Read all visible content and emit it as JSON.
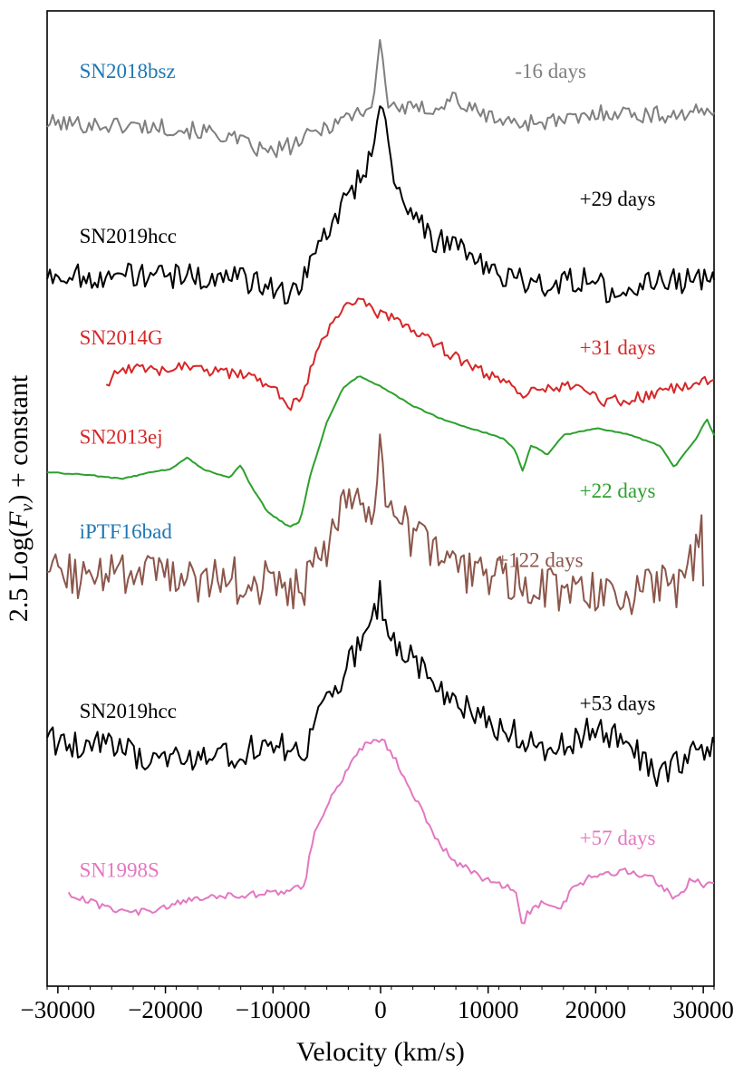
{
  "chart_data": {
    "type": "line",
    "xlabel": "Velocity (km/s)",
    "ylabel": "2.5 Log(F_ν) + constant",
    "ylabel_prefix": "2.5 Log(",
    "ylabel_var": "F",
    "ylabel_sub": "ν",
    "ylabel_suffix": ") + constant",
    "xlim": [
      -31000,
      31000
    ],
    "ylim": [
      0,
      100
    ],
    "yticks_shown": false,
    "xticks": [
      -30000,
      -20000,
      -10000,
      0,
      10000,
      20000,
      30000
    ],
    "xtick_labels": [
      "−30000",
      "−20000",
      "−10000",
      "0",
      "10000",
      "20000",
      "30000"
    ],
    "series": [
      {
        "name": "SN2018bsz",
        "epoch": "-16 days",
        "color": "#7f7f7f",
        "label_color": "#1f77b4",
        "epoch_color": "#7f7f7f",
        "offset": 88.7,
        "noise": 0.9,
        "label_at": {
          "x": -28000,
          "y": 93.1
        },
        "epoch_at": {
          "x": 12500,
          "y": 93.1
        },
        "points": [
          [
            -31000,
            88.5
          ],
          [
            -20000,
            88.1
          ],
          [
            -15000,
            87.4
          ],
          [
            -12000,
            86.1
          ],
          [
            -10500,
            85.4
          ],
          [
            -8000,
            86.3
          ],
          [
            -5000,
            88.2
          ],
          [
            -2000,
            89.7
          ],
          [
            -800,
            90.2
          ],
          [
            -300,
            94.2
          ],
          [
            -100,
            96.7
          ],
          [
            0,
            97.3
          ],
          [
            200,
            95.5
          ],
          [
            500,
            91.0
          ],
          [
            1000,
            90.3
          ],
          [
            3000,
            89.8
          ],
          [
            6000,
            90.3
          ],
          [
            6800,
            91.4
          ],
          [
            7800,
            90.1
          ],
          [
            12000,
            88.5
          ],
          [
            18000,
            88.8
          ],
          [
            21000,
            89.7
          ],
          [
            25000,
            89.3
          ],
          [
            31000,
            89.6
          ]
        ]
      },
      {
        "name": "SN2019hcc",
        "epoch": "+29 days",
        "color": "#000000",
        "label_color": "#000000",
        "epoch_color": "#000000",
        "offset": 73.5,
        "noise": 1.3,
        "label_at": {
          "x": -28000,
          "y": 76.2
        },
        "epoch_at": {
          "x": 18500,
          "y": 80.0
        },
        "points": [
          [
            -31000,
            72.9
          ],
          [
            -15000,
            72.8
          ],
          [
            -10000,
            71.8
          ],
          [
            -8500,
            70.5
          ],
          [
            -7000,
            73.0
          ],
          [
            -5500,
            76.5
          ],
          [
            -3500,
            80.1
          ],
          [
            -1500,
            83.5
          ],
          [
            -500,
            87.5
          ],
          [
            0,
            90.2
          ],
          [
            600,
            88.5
          ],
          [
            1200,
            83.5
          ],
          [
            2500,
            79.5
          ],
          [
            5000,
            76.5
          ],
          [
            7000,
            76.2
          ],
          [
            9000,
            74.1
          ],
          [
            12000,
            72.5
          ],
          [
            15000,
            71.9
          ],
          [
            20000,
            72.8
          ],
          [
            22000,
            69.5
          ],
          [
            25000,
            72.3
          ],
          [
            31000,
            72.4
          ]
        ]
      },
      {
        "name": "SN2014G",
        "epoch": "+31 days",
        "color": "#d62728",
        "label_color": "#d62728",
        "epoch_color": "#d62728",
        "offset": 63.6,
        "noise": 0.6,
        "label_at": {
          "x": -28000,
          "y": 65.8
        },
        "epoch_at": {
          "x": 18500,
          "y": 64.8
        },
        "points": [
          [
            -25500,
            61.8
          ],
          [
            -24500,
            63.2
          ],
          [
            -20000,
            63.2
          ],
          [
            -18500,
            63.8
          ],
          [
            -15000,
            62.9
          ],
          [
            -12500,
            62.5
          ],
          [
            -10000,
            61.3
          ],
          [
            -8200,
            59.4
          ],
          [
            -7000,
            61.5
          ],
          [
            -5500,
            66.3
          ],
          [
            -3000,
            70.2
          ],
          [
            -1500,
            69.9
          ],
          [
            0,
            68.9
          ],
          [
            2500,
            67.6
          ],
          [
            5000,
            65.9
          ],
          [
            8000,
            63.8
          ],
          [
            11000,
            62.1
          ],
          [
            13000,
            60.8
          ],
          [
            16000,
            61.2
          ],
          [
            18000,
            61.5
          ],
          [
            21000,
            59.9
          ],
          [
            25000,
            60.5
          ],
          [
            28000,
            61.6
          ],
          [
            31000,
            62.2
          ]
        ]
      },
      {
        "name": "SN2013ej",
        "epoch": "+22 days",
        "color": "#2ca02c",
        "label_color": "#d62728",
        "epoch_color": "#2ca02c",
        "offset": 52.7,
        "noise": 0.05,
        "label_at": {
          "x": -28000,
          "y": 55.6
        },
        "epoch_at": {
          "x": 18500,
          "y": 50.1
        },
        "points": [
          [
            -31000,
            52.7
          ],
          [
            -27000,
            52.4
          ],
          [
            -24000,
            52.0
          ],
          [
            -21000,
            52.8
          ],
          [
            -19500,
            53.0
          ],
          [
            -18000,
            54.2
          ],
          [
            -16500,
            53.0
          ],
          [
            -14000,
            52.1
          ],
          [
            -13000,
            53.5
          ],
          [
            -12200,
            51.6
          ],
          [
            -10500,
            48.6
          ],
          [
            -8500,
            47.1
          ],
          [
            -7500,
            47.6
          ],
          [
            -6500,
            52.5
          ],
          [
            -5000,
            57.8
          ],
          [
            -3500,
            61.3
          ],
          [
            -2000,
            62.6
          ],
          [
            0,
            61.5
          ],
          [
            3000,
            59.5
          ],
          [
            6000,
            58.0
          ],
          [
            9000,
            57.0
          ],
          [
            11500,
            56.1
          ],
          [
            12500,
            55.0
          ],
          [
            13200,
            52.8
          ],
          [
            14000,
            55.5
          ],
          [
            15500,
            54.5
          ],
          [
            17000,
            56.5
          ],
          [
            20000,
            57.2
          ],
          [
            23000,
            56.6
          ],
          [
            26000,
            55.4
          ],
          [
            27300,
            53.2
          ],
          [
            28500,
            55.0
          ],
          [
            29500,
            56.4
          ],
          [
            30300,
            58.2
          ],
          [
            31000,
            56.5
          ]
        ]
      },
      {
        "name": "iPTF16bad",
        "epoch": "+122 days",
        "color": "#8c564b",
        "label_color": "#1f77b4",
        "epoch_color": "#8c564b",
        "offset": 42.1,
        "noise": 2.4,
        "label_at": {
          "x": -28000,
          "y": 45.9
        },
        "epoch_at": {
          "x": 10800,
          "y": 43.0
        },
        "points": [
          [
            -31000,
            42.2
          ],
          [
            -15000,
            41.7
          ],
          [
            -10000,
            41.4
          ],
          [
            -7500,
            40.2
          ],
          [
            -5000,
            44.5
          ],
          [
            -3500,
            48.5
          ],
          [
            -2000,
            50.3
          ],
          [
            -800,
            49.7
          ],
          [
            -250,
            53.0
          ],
          [
            0,
            55.2
          ],
          [
            300,
            51.5
          ],
          [
            1000,
            49.5
          ],
          [
            3000,
            45.5
          ],
          [
            5000,
            44.5
          ],
          [
            8000,
            42.5
          ],
          [
            12000,
            41.8
          ],
          [
            18000,
            40.6
          ],
          [
            22000,
            39.7
          ],
          [
            26000,
            41.6
          ],
          [
            28000,
            40.9
          ],
          [
            29500,
            45.0
          ],
          [
            29800,
            51.5
          ],
          [
            30000,
            41.0
          ]
        ]
      },
      {
        "name": "SN2019hcc",
        "epoch": "+53 days",
        "color": "#000000",
        "label_color": "#000000",
        "epoch_color": "#000000",
        "offset": 24.8,
        "noise": 1.5,
        "label_at": {
          "x": -28000,
          "y": 27.5
        },
        "epoch_at": {
          "x": 18500,
          "y": 28.3
        },
        "points": [
          [
            -31000,
            25.1
          ],
          [
            -25000,
            24.5
          ],
          [
            -20000,
            22.9
          ],
          [
            -15000,
            23.6
          ],
          [
            -10000,
            24.6
          ],
          [
            -7000,
            24.0
          ],
          [
            -5500,
            28.0
          ],
          [
            -3500,
            32.0
          ],
          [
            -1500,
            35.7
          ],
          [
            -300,
            38.5
          ],
          [
            0,
            40.5
          ],
          [
            400,
            37.2
          ],
          [
            1500,
            35.0
          ],
          [
            3000,
            33.5
          ],
          [
            5000,
            30.5
          ],
          [
            8000,
            28.3
          ],
          [
            12000,
            26.1
          ],
          [
            15000,
            24.5
          ],
          [
            18000,
            25.3
          ],
          [
            20000,
            26.6
          ],
          [
            23000,
            24.9
          ],
          [
            26000,
            21.2
          ],
          [
            28500,
            23.5
          ],
          [
            31000,
            25.0
          ]
        ]
      },
      {
        "name": "SN1998S",
        "epoch": "+57 days",
        "color": "#e377c2",
        "label_color": "#e377c2",
        "epoch_color": "#e377c2",
        "offset": 8.8,
        "noise": 0.35,
        "label_at": {
          "x": -28000,
          "y": 11.2
        },
        "epoch_at": {
          "x": 18500,
          "y": 14.5
        },
        "points": [
          [
            -29000,
            9.5
          ],
          [
            -26000,
            8.2
          ],
          [
            -23000,
            7.5
          ],
          [
            -20000,
            8.0
          ],
          [
            -18000,
            8.8
          ],
          [
            -15000,
            9.3
          ],
          [
            -12000,
            9.4
          ],
          [
            -9000,
            9.7
          ],
          [
            -7000,
            10.3
          ],
          [
            -6500,
            14.3
          ],
          [
            -5500,
            17.5
          ],
          [
            -4000,
            20.4
          ],
          [
            -2500,
            23.2
          ],
          [
            -1500,
            24.8
          ],
          [
            -800,
            25.3
          ],
          [
            -200,
            25.1
          ],
          [
            0,
            25.7
          ],
          [
            500,
            24.6
          ],
          [
            1500,
            23.0
          ],
          [
            3000,
            19.8
          ],
          [
            5000,
            15.3
          ],
          [
            7000,
            12.7
          ],
          [
            10000,
            10.8
          ],
          [
            12500,
            9.9
          ],
          [
            13000,
            7.6
          ],
          [
            13200,
            5.6
          ],
          [
            13500,
            7.3
          ],
          [
            15000,
            8.5
          ],
          [
            16500,
            7.9
          ],
          [
            18000,
            10.1
          ],
          [
            20000,
            11.5
          ],
          [
            23000,
            11.8
          ],
          [
            25000,
            11.3
          ],
          [
            26500,
            9.9
          ],
          [
            27500,
            9.0
          ],
          [
            29000,
            11.1
          ],
          [
            30000,
            10.2
          ],
          [
            31000,
            10.6
          ]
        ]
      }
    ]
  }
}
